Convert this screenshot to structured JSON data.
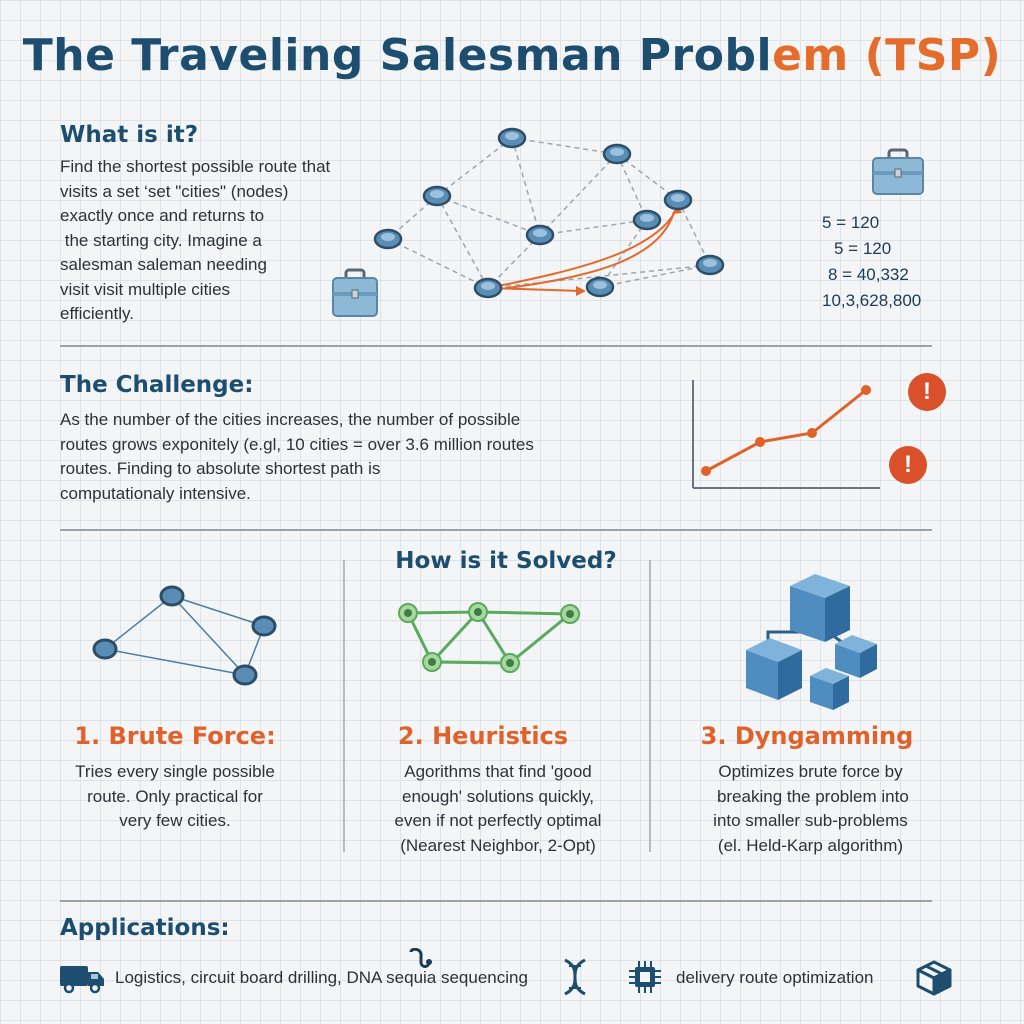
{
  "title": {
    "main": "The Traveling Salesman Probl",
    "accent": "em (TSP)"
  },
  "what_is_it": {
    "heading": "What is it?",
    "lines": [
      "Find the shortest possible route that",
      "visits a set ‘set \"cities\" (nodes)",
      "exactly once and returns to",
      " the starting city. Imagine a",
      "salesman saleman needing",
      "visit visit multiple cities",
      "efficiently."
    ],
    "route_counts": [
      "5 = 120",
      "5 = 120",
      "8 = 40,332",
      "10,3,628,800"
    ]
  },
  "challenge": {
    "heading": "The Challenge:",
    "lines": [
      "As the number of the cities increases, the number of possible",
      "routes grows exponitely (e.gl, 10 cities = over 3.6 million routes",
      "routes. Finding to absolute shortest path is",
      "computationaly intensive."
    ],
    "alert_symbol": "!"
  },
  "solved": {
    "heading": "How is it Solved?",
    "methods": [
      {
        "title": "1. Brute Force:",
        "lines": [
          "Tries every single possible",
          "route. Only practical for",
          "very few cities."
        ]
      },
      {
        "title": "2. Heuristics",
        "lines": [
          "Agorithms that find 'good",
          "enough' solutions quickly,",
          "even if not perfectly optimal",
          "(Nearest Neighbor, 2-Opt)"
        ]
      },
      {
        "title": "3. Dyngamming",
        "lines": [
          "Optimizes brute force by",
          " breaking the problem into",
          "into smaller sub-problems",
          "(el. Held-Karp algorithm)"
        ]
      }
    ]
  },
  "applications": {
    "heading": "Applications:",
    "text1": "Logistics, circuit board drilling, DNA sequia sequencing",
    "text2": "delivery route optimization",
    "icons": [
      "truck-icon",
      "map-pin-icon",
      "dna-icon",
      "chip-icon",
      "package-icon"
    ]
  },
  "colors": {
    "primary": "#1d4e6f",
    "accent": "#e56d2c",
    "node": "#4f86ad",
    "heuristic_green": "#5aaa5e",
    "alert_red": "#d9502a"
  }
}
